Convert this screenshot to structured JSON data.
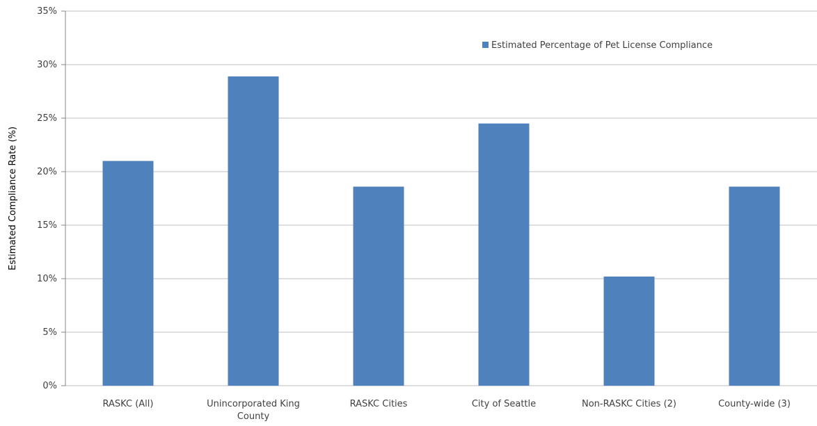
{
  "chart_data": {
    "type": "bar",
    "title": "",
    "xlabel": "",
    "ylabel": "Estimated Compliance Rate (%)",
    "ylim": [
      0,
      35
    ],
    "yticks": [
      0,
      5,
      10,
      15,
      20,
      25,
      30,
      35
    ],
    "ytick_labels": [
      "0%",
      "5%",
      "10%",
      "15%",
      "20%",
      "25%",
      "30%",
      "35%"
    ],
    "categories": [
      [
        "RASKC (All)"
      ],
      [
        "Unincorporated King",
        "County"
      ],
      [
        "RASKC Cities"
      ],
      [
        "City of Seattle"
      ],
      [
        "Non-RASKC Cities (2)"
      ],
      [
        "County-wide (3)"
      ]
    ],
    "series": [
      {
        "name": "Estimated Percentage of Pet License Compliance",
        "color": "#4f81bd",
        "values": [
          21.0,
          28.9,
          18.6,
          24.5,
          10.2,
          18.6
        ]
      }
    ],
    "grid": true,
    "legend_position": "top-right",
    "gridline_color": "#bfbfbf"
  }
}
